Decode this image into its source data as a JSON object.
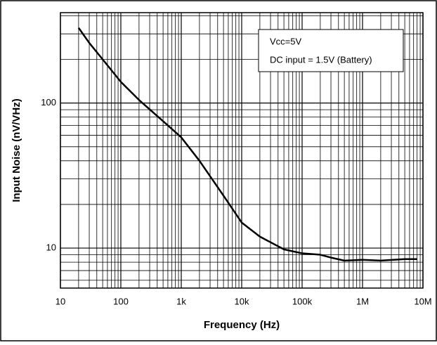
{
  "chart_data": {
    "type": "line",
    "log_x": true,
    "log_y": true,
    "grid": true,
    "minor_grid": true,
    "x_label": "Frequency (Hz)",
    "y_label": "Input Noise  (nV/VHz)",
    "xlim": [
      10,
      10000000
    ],
    "ylim": [
      5.3,
      420
    ],
    "xticks": [
      10,
      100,
      {
        "value": 1000,
        "label": "1k"
      },
      {
        "value": 10000,
        "label": "10k"
      },
      {
        "value": 100000,
        "label": "100k"
      },
      {
        "value": 1000000,
        "label": "1M"
      },
      {
        "value": 10000000,
        "label": "10M"
      }
    ],
    "yticks": [
      10,
      100
    ],
    "annotations": [
      "Vcc=5V",
      "DC input = 1.5V (Battery)"
    ],
    "x": [
      20,
      30,
      50,
      100,
      200,
      500,
      1000,
      2000,
      5000,
      10000,
      20000,
      50000,
      100000,
      200000,
      300000,
      500000,
      1000000,
      2000000,
      5000000,
      8000000
    ],
    "series": [
      {
        "color": "#000000",
        "values": [
          330,
          260,
          200,
          140,
          105,
          75,
          58,
          40,
          23,
          15,
          12,
          9.8,
          9.2,
          9.0,
          8.6,
          8.2,
          8.3,
          8.2,
          8.4,
          8.4
        ]
      }
    ]
  }
}
